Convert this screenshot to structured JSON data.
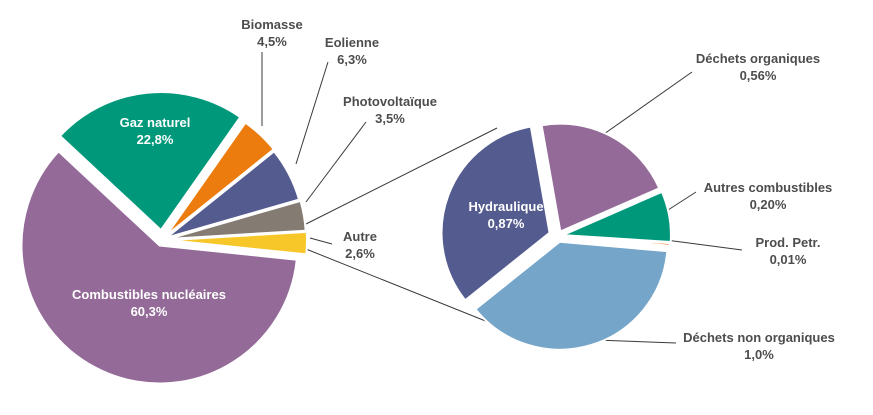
{
  "colors": {
    "nuclear": "#946b98",
    "gas": "#00987a",
    "biomass": "#ec7c0e",
    "wind": "#535b8f",
    "pv": "#847c72",
    "autre": "#f7c72a",
    "hydro": "#535b8f",
    "dechets_org": "#946b98",
    "autres_comb": "#00987a",
    "prod_petr": "#ec7c0e",
    "dechets_non_org": "#75a5c9",
    "leader": "#3a3a3a",
    "text": "#4d4d4d"
  },
  "chart_data": [
    {
      "type": "pie",
      "slices": [
        {
          "name": "Combustibles nucléaires",
          "value": 60.3,
          "label": "60,3%",
          "color_key": "nuclear"
        },
        {
          "name": "Gaz naturel",
          "value": 22.8,
          "label": "22,8%",
          "color_key": "gas"
        },
        {
          "name": "Biomasse",
          "value": 4.5,
          "label": "4,5%",
          "color_key": "biomass"
        },
        {
          "name": "Eolienne",
          "value": 6.3,
          "label": "6,3%",
          "color_key": "wind"
        },
        {
          "name": "Photovoltaïque",
          "value": 3.5,
          "label": "3,5%",
          "color_key": "pv"
        },
        {
          "name": "Autre",
          "value": 2.6,
          "label": "2,6%",
          "color_key": "autre"
        }
      ]
    },
    {
      "type": "pie",
      "breakdown_of": "Autre",
      "slices": [
        {
          "name": "Hydraulique",
          "value": 0.87,
          "label": "0,87%",
          "color_key": "hydro"
        },
        {
          "name": "Déchets organiques",
          "value": 0.56,
          "label": "0,56%",
          "color_key": "dechets_org"
        },
        {
          "name": "Autres combustibles",
          "value": 0.2,
          "label": "0,20%",
          "color_key": "autres_comb"
        },
        {
          "name": "Prod. Petr.",
          "value": 0.01,
          "label": "0,01%",
          "color_key": "prod_petr"
        },
        {
          "name": "Déchets non organiques",
          "value": 1.0,
          "label": "1,0%",
          "color_key": "dechets_non_org"
        }
      ]
    }
  ]
}
